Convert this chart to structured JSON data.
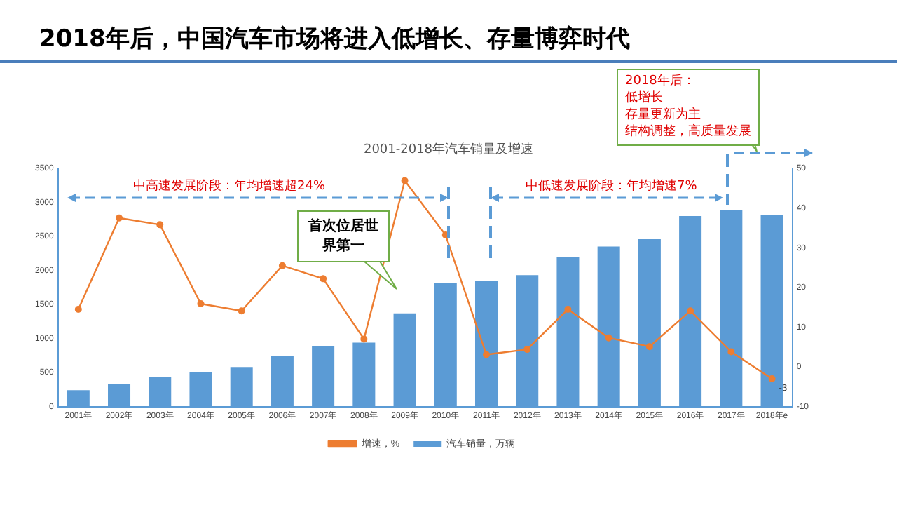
{
  "chart_data": {
    "type": "bar",
    "title": "2018年后，中国汽车市场将进入低增长、存量博弈时代",
    "subtitle": "2001-2018年汽车销量及增速",
    "categories": [
      "2001年",
      "2002年",
      "2003年",
      "2004年",
      "2005年",
      "2006年",
      "2007年",
      "2008年",
      "2009年",
      "2010年",
      "2011年",
      "2012年",
      "2013年",
      "2014年",
      "2015年",
      "2016年",
      "2017年",
      "2018年e"
    ],
    "series": [
      {
        "name": "汽车销量，万辆",
        "color": "#5b9bd5",
        "values": [
          240,
          330,
          440,
          510,
          580,
          740,
          890,
          940,
          1370,
          1810,
          1850,
          1930,
          2200,
          2350,
          2460,
          2800,
          2890,
          2810
        ]
      },
      {
        "name": "增速，%",
        "type": "line",
        "axis": "y2",
        "color": "#ed7d31",
        "marker": "circle",
        "values": [
          14.5,
          37.5,
          35.8,
          15.9,
          14.1,
          25.5,
          22.2,
          7,
          46.9,
          33.2,
          3.1,
          4.4,
          14.5,
          7.3,
          5.1,
          14.1,
          3.8,
          -3
        ],
        "value_labels": [
          null,
          null,
          null,
          null,
          null,
          null,
          null,
          null,
          null,
          null,
          null,
          null,
          null,
          null,
          null,
          null,
          null,
          "-3"
        ]
      }
    ],
    "ylim": [
      0,
      3500
    ],
    "yticks": [
      0,
      500,
      1000,
      1500,
      2000,
      2500,
      3000,
      3500
    ],
    "y2lim": [
      -10,
      50
    ],
    "y2ticks": [
      -10,
      0,
      10,
      20,
      30,
      40,
      50
    ],
    "grid": false,
    "legend": "bottom",
    "annotations": [
      "中高速发展阶段：年均增速超24%",
      "中低速发展阶段：年均增速7%",
      "首次位居世界第一",
      "2018年后：",
      "低增长",
      "存量更新为主",
      "结构调整，高质量发展"
    ]
  }
}
